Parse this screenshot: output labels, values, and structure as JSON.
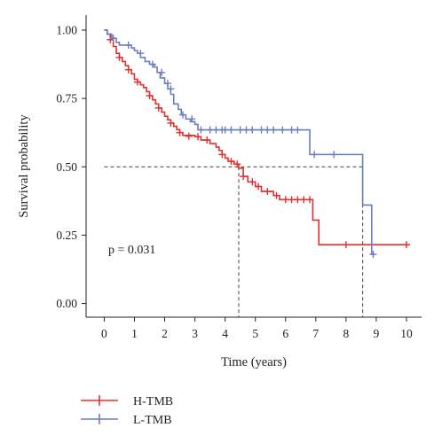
{
  "chart_data": {
    "type": "line",
    "subtype": "kaplan-meier",
    "xlabel": "Time (years)",
    "ylabel": "Survival probability",
    "xlim": [
      -0.6,
      10.5
    ],
    "ylim": [
      -0.05,
      1.055
    ],
    "x_ticks": [
      "0",
      "1",
      "2",
      "3",
      "4",
      "5",
      "6",
      "7",
      "8",
      "9",
      "10"
    ],
    "y_ticks": [
      "0.00",
      "0.25",
      "0.50",
      "0.75",
      "1.00"
    ],
    "y_tick_values": [
      0,
      0.25,
      0.5,
      0.75,
      1.0
    ],
    "grid": false,
    "legend_position": "bottom-left",
    "annotation": "p = 0.031",
    "median_line": {
      "y": 0.5,
      "x_end": 8.55,
      "drops": [
        4.45,
        8.55
      ]
    },
    "series": [
      {
        "name": "H-TMB",
        "color": "#e0312f",
        "points": [
          [
            0,
            1.0
          ],
          [
            0.1,
            0.985
          ],
          [
            0.2,
            0.965
          ],
          [
            0.3,
            0.94
          ],
          [
            0.4,
            0.915
          ],
          [
            0.5,
            0.9
          ],
          [
            0.6,
            0.885
          ],
          [
            0.7,
            0.87
          ],
          [
            0.8,
            0.855
          ],
          [
            0.9,
            0.84
          ],
          [
            1.0,
            0.82
          ],
          [
            1.1,
            0.81
          ],
          [
            1.2,
            0.8
          ],
          [
            1.3,
            0.79
          ],
          [
            1.4,
            0.775
          ],
          [
            1.5,
            0.76
          ],
          [
            1.6,
            0.745
          ],
          [
            1.7,
            0.73
          ],
          [
            1.8,
            0.715
          ],
          [
            1.9,
            0.7
          ],
          [
            2.0,
            0.685
          ],
          [
            2.1,
            0.672
          ],
          [
            2.2,
            0.66
          ],
          [
            2.3,
            0.648
          ],
          [
            2.4,
            0.636
          ],
          [
            2.5,
            0.625
          ],
          [
            2.6,
            0.615
          ],
          [
            3.0,
            0.61
          ],
          [
            3.2,
            0.598
          ],
          [
            3.5,
            0.585
          ],
          [
            3.7,
            0.572
          ],
          [
            3.8,
            0.56
          ],
          [
            3.9,
            0.545
          ],
          [
            4.0,
            0.532
          ],
          [
            4.1,
            0.52
          ],
          [
            4.3,
            0.51
          ],
          [
            4.45,
            0.495
          ],
          [
            4.6,
            0.465
          ],
          [
            4.75,
            0.445
          ],
          [
            5.0,
            0.428
          ],
          [
            5.2,
            0.41
          ],
          [
            5.6,
            0.395
          ],
          [
            5.8,
            0.38
          ],
          [
            6.9,
            0.305
          ],
          [
            7.1,
            0.215
          ],
          [
            10.1,
            0.215
          ]
        ],
        "censored": [
          [
            0.2,
            0.965
          ],
          [
            0.5,
            0.9
          ],
          [
            0.8,
            0.855
          ],
          [
            1.1,
            0.81
          ],
          [
            1.5,
            0.76
          ],
          [
            1.8,
            0.715
          ],
          [
            2.2,
            0.66
          ],
          [
            2.5,
            0.625
          ],
          [
            2.8,
            0.612
          ],
          [
            3.1,
            0.61
          ],
          [
            3.4,
            0.598
          ],
          [
            3.9,
            0.545
          ],
          [
            4.2,
            0.52
          ],
          [
            4.4,
            0.51
          ],
          [
            4.6,
            0.465
          ],
          [
            4.9,
            0.445
          ],
          [
            5.1,
            0.428
          ],
          [
            5.4,
            0.41
          ],
          [
            5.7,
            0.395
          ],
          [
            6.0,
            0.38
          ],
          [
            6.2,
            0.38
          ],
          [
            6.4,
            0.38
          ],
          [
            6.6,
            0.38
          ],
          [
            6.8,
            0.38
          ],
          [
            8.0,
            0.215
          ],
          [
            10.0,
            0.215
          ]
        ]
      },
      {
        "name": "L-TMB",
        "color": "#6a7ebd",
        "points": [
          [
            0,
            1.0
          ],
          [
            0.1,
            0.985
          ],
          [
            0.25,
            0.97
          ],
          [
            0.4,
            0.955
          ],
          [
            0.5,
            0.945
          ],
          [
            0.9,
            0.935
          ],
          [
            1.0,
            0.925
          ],
          [
            1.1,
            0.915
          ],
          [
            1.2,
            0.9
          ],
          [
            1.35,
            0.885
          ],
          [
            1.5,
            0.875
          ],
          [
            1.65,
            0.865
          ],
          [
            1.75,
            0.845
          ],
          [
            1.85,
            0.825
          ],
          [
            2.0,
            0.805
          ],
          [
            2.1,
            0.785
          ],
          [
            2.2,
            0.765
          ],
          [
            2.3,
            0.73
          ],
          [
            2.45,
            0.71
          ],
          [
            2.55,
            0.69
          ],
          [
            2.7,
            0.675
          ],
          [
            2.85,
            0.665
          ],
          [
            3.0,
            0.655
          ],
          [
            3.1,
            0.635
          ],
          [
            6.8,
            0.545
          ],
          [
            8.55,
            0.36
          ],
          [
            8.85,
            0.18
          ],
          [
            8.95,
            0.18
          ]
        ],
        "censored": [
          [
            0.3,
            0.97
          ],
          [
            0.8,
            0.945
          ],
          [
            1.2,
            0.915
          ],
          [
            1.6,
            0.875
          ],
          [
            1.9,
            0.845
          ],
          [
            2.1,
            0.805
          ],
          [
            2.2,
            0.785
          ],
          [
            2.6,
            0.69
          ],
          [
            2.9,
            0.675
          ],
          [
            3.2,
            0.635
          ],
          [
            3.5,
            0.635
          ],
          [
            3.7,
            0.635
          ],
          [
            3.9,
            0.635
          ],
          [
            4.0,
            0.635
          ],
          [
            4.2,
            0.635
          ],
          [
            4.5,
            0.635
          ],
          [
            4.7,
            0.635
          ],
          [
            4.9,
            0.635
          ],
          [
            5.2,
            0.635
          ],
          [
            5.4,
            0.635
          ],
          [
            5.6,
            0.635
          ],
          [
            5.9,
            0.635
          ],
          [
            6.2,
            0.635
          ],
          [
            6.4,
            0.635
          ],
          [
            6.95,
            0.545
          ],
          [
            7.6,
            0.545
          ],
          [
            8.9,
            0.18
          ]
        ]
      }
    ]
  }
}
